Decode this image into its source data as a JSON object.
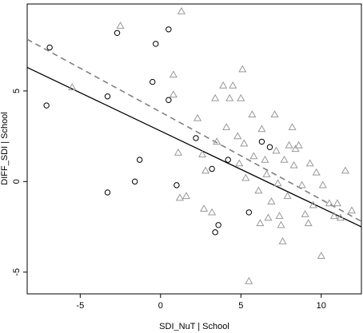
{
  "chart_data": {
    "type": "scatter",
    "xlabel": "SDI_NuT | School",
    "ylabel": "DIFF_SDI | School",
    "xlim": [
      -8.3,
      12.5
    ],
    "ylim": [
      -6.2,
      9.8
    ],
    "x_ticks": [
      -5,
      0,
      5,
      10
    ],
    "y_ticks": [
      -5,
      0,
      5
    ],
    "grid": false,
    "series": [
      {
        "marker": "circle",
        "color": "#000000",
        "points": [
          [
            -7.1,
            4.2
          ],
          [
            -6.9,
            7.4
          ],
          [
            -3.3,
            4.7
          ],
          [
            -3.3,
            -0.6
          ],
          [
            -2.7,
            8.2
          ],
          [
            -1.6,
            0.0
          ],
          [
            -1.3,
            1.2
          ],
          [
            -0.3,
            7.6
          ],
          [
            -0.5,
            5.5
          ],
          [
            0.5,
            8.4
          ],
          [
            0.5,
            4.5
          ],
          [
            1.0,
            -0.2
          ],
          [
            2.2,
            2.4
          ],
          [
            3.2,
            0.7
          ],
          [
            3.4,
            -2.8
          ],
          [
            3.6,
            -2.4
          ],
          [
            4.2,
            1.2
          ],
          [
            5.5,
            -1.7
          ],
          [
            6.3,
            2.2
          ],
          [
            6.8,
            1.9
          ]
        ]
      },
      {
        "marker": "triangle",
        "color": "#999999",
        "points": [
          [
            -2.5,
            8.6
          ],
          [
            -5.5,
            5.2
          ],
          [
            1.3,
            9.4
          ],
          [
            0.8,
            5.9
          ],
          [
            0.8,
            4.8
          ],
          [
            1.1,
            1.6
          ],
          [
            1.2,
            -0.9
          ],
          [
            2.3,
            3.5
          ],
          [
            2.6,
            1.5
          ],
          [
            2.8,
            0.6
          ],
          [
            2.7,
            -1.5
          ],
          [
            3.2,
            -1.7
          ],
          [
            3.4,
            4.6
          ],
          [
            3.5,
            2.2
          ],
          [
            3.9,
            5.3
          ],
          [
            4.1,
            3.0
          ],
          [
            4.3,
            4.6
          ],
          [
            4.5,
            5.3
          ],
          [
            4.8,
            2.5
          ],
          [
            4.9,
            1.0
          ],
          [
            5.0,
            4.6
          ],
          [
            5.1,
            6.2
          ],
          [
            5.2,
            2.1
          ],
          [
            5.3,
            0.2
          ],
          [
            5.5,
            -5.5
          ],
          [
            5.7,
            3.7
          ],
          [
            5.8,
            1.4
          ],
          [
            6.1,
            -0.5
          ],
          [
            6.2,
            -2.3
          ],
          [
            6.3,
            2.9
          ],
          [
            6.5,
            1.2
          ],
          [
            6.6,
            0.4
          ],
          [
            6.7,
            -2.0
          ],
          [
            6.9,
            -1.1
          ],
          [
            7.1,
            3.7
          ],
          [
            7.2,
            1.7
          ],
          [
            7.3,
            -0.1
          ],
          [
            7.4,
            -1.9
          ],
          [
            7.5,
            -2.4
          ],
          [
            7.6,
            -3.3
          ],
          [
            7.7,
            1.2
          ],
          [
            7.9,
            -0.8
          ],
          [
            8.0,
            2.0
          ],
          [
            8.2,
            3.0
          ],
          [
            8.3,
            0.9
          ],
          [
            8.4,
            1.8
          ],
          [
            8.6,
            2.0
          ],
          [
            8.8,
            -0.2
          ],
          [
            9.0,
            -1.8
          ],
          [
            9.2,
            -2.3
          ],
          [
            9.3,
            1.0
          ],
          [
            9.5,
            -1.3
          ],
          [
            9.7,
            0.5
          ],
          [
            10.0,
            -4.1
          ],
          [
            10.1,
            -0.2
          ],
          [
            10.5,
            -1.2
          ],
          [
            10.8,
            -1.9
          ],
          [
            11.0,
            -1.2
          ],
          [
            11.2,
            -2.0
          ],
          [
            11.5,
            0.6
          ],
          [
            11.9,
            -1.6
          ],
          [
            1.6,
            -0.8
          ]
        ]
      }
    ],
    "lines": [
      {
        "style": "solid",
        "color": "#000000",
        "from": [
          -8.3,
          6.3
        ],
        "to": [
          12.5,
          -2.5
        ]
      },
      {
        "style": "dashed",
        "color": "#808080",
        "from": [
          -8.3,
          7.85
        ],
        "to": [
          12.5,
          -2.2
        ]
      }
    ]
  }
}
